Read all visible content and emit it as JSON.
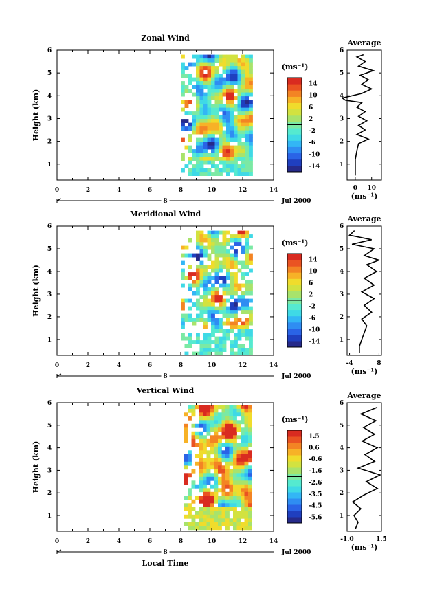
{
  "colormap": [
    "#262a8a",
    "#1f3fbf",
    "#2a63e6",
    "#2f8df2",
    "#33b6f5",
    "#3fd9e6",
    "#55ead0",
    "#7be9a4",
    "#a8e36b",
    "#d2e240",
    "#f0dc2c",
    "#f7b227",
    "#f38424",
    "#ea5322",
    "#d92b20"
  ],
  "shared": {
    "date_label": "Jul 2000",
    "date_day": "8",
    "xlabel": "Local Time"
  },
  "chart_data": [
    {
      "type": "heatmap",
      "title": "Zonal Wind",
      "ylabel": "Height (km)",
      "unit": "(ms⁻¹)",
      "xlim": [
        0,
        14
      ],
      "ylim": [
        0.3,
        6
      ],
      "xticks": [
        "0",
        "2",
        "4",
        "6",
        "8",
        "10",
        "12",
        "14"
      ],
      "yticks": [
        "1",
        "2",
        "3",
        "4",
        "5",
        "6"
      ],
      "colorbar": {
        "min": -16,
        "max": 16,
        "ticks": [
          "14",
          "10",
          "6",
          "2",
          "-2",
          "-6",
          "-10",
          "-14"
        ]
      },
      "data_extent": {
        "t_start": 8.0,
        "t_end": 12.6,
        "z_bottom": 0.55,
        "z_top": 5.8,
        "surface_layer_top": 1.3
      },
      "average_profile": {
        "title": "Average",
        "xlabel": "(ms⁻¹)",
        "xlim": [
          -5,
          16
        ],
        "xticks": [
          "0",
          "10"
        ],
        "heights": [
          0.5,
          0.8,
          1.2,
          1.6,
          1.9,
          2.1,
          2.3,
          2.5,
          2.7,
          2.9,
          3.1,
          3.3,
          3.5,
          3.7,
          3.8,
          3.9,
          4.1,
          4.3,
          4.5,
          4.7,
          4.9,
          5.1,
          5.3,
          5.5,
          5.7,
          5.8
        ],
        "values": [
          0,
          0,
          0,
          1,
          2,
          8,
          1,
          6,
          2,
          7,
          2,
          6,
          1,
          4,
          -6,
          -8,
          4,
          10,
          4,
          8,
          3,
          11,
          2,
          6,
          1,
          5
        ]
      }
    },
    {
      "type": "heatmap",
      "title": "Meridional Wind",
      "ylabel": "Height (km)",
      "unit": "(ms⁻¹)",
      "xlim": [
        0,
        14
      ],
      "ylim": [
        0.3,
        6
      ],
      "xticks": [
        "0",
        "2",
        "4",
        "6",
        "8",
        "10",
        "12",
        "14"
      ],
      "yticks": [
        "1",
        "2",
        "3",
        "4",
        "5",
        "6"
      ],
      "colorbar": {
        "min": -16,
        "max": 16,
        "ticks": [
          "14",
          "10",
          "6",
          "2",
          "-2",
          "-6",
          "-10",
          "-14"
        ]
      },
      "data_extent": {
        "t_start": 8.0,
        "t_end": 12.6,
        "z_bottom": 0.35,
        "z_top": 5.8,
        "surface_layer_top": 1.5
      },
      "average_profile": {
        "title": "Average",
        "xlabel": "(ms⁻¹)",
        "xlim": [
          -5,
          9
        ],
        "xticks": [
          "-4",
          "8"
        ],
        "heights": [
          0.4,
          0.7,
          1.0,
          1.3,
          1.6,
          1.9,
          2.2,
          2.5,
          2.8,
          3.1,
          3.4,
          3.7,
          4.0,
          4.3,
          4.5,
          4.7,
          5.0,
          5.2,
          5.4,
          5.6,
          5.8
        ],
        "values": [
          0,
          0,
          1,
          2,
          3,
          1,
          5,
          2,
          6,
          1,
          6,
          2,
          7,
          3,
          8,
          2,
          6,
          -3,
          5,
          -4,
          -2
        ]
      }
    },
    {
      "type": "heatmap",
      "title": "Vertical Wind",
      "ylabel": "Height (km)",
      "xlabel": "Local Time",
      "unit": "(ms⁻¹)",
      "xlim": [
        0,
        14
      ],
      "ylim": [
        0.3,
        6
      ],
      "xticks": [
        "0",
        "2",
        "4",
        "6",
        "8",
        "10",
        "12",
        "14"
      ],
      "yticks": [
        "1",
        "2",
        "3",
        "4",
        "5",
        "6"
      ],
      "colorbar": {
        "min": -6,
        "max": 2,
        "ticks": [
          "1.5",
          "0.6",
          "-0.6",
          "-1.6",
          "-2.6",
          "-3.5",
          "-4.5",
          "-5.6"
        ]
      },
      "data_extent": {
        "t_start": 8.2,
        "t_end": 12.6,
        "z_bottom": 0.4,
        "z_top": 5.9,
        "surface_layer_top": 1.5
      },
      "average_profile": {
        "title": "Average",
        "xlabel": "(ms⁻¹)",
        "xlim": [
          -1,
          1.5
        ],
        "xticks": [
          "-1.0",
          "1.5"
        ],
        "heights": [
          0.4,
          0.7,
          1.0,
          1.3,
          1.6,
          1.9,
          2.2,
          2.5,
          2.8,
          3.1,
          3.4,
          3.7,
          4.0,
          4.3,
          4.6,
          4.9,
          5.2,
          5.5,
          5.8
        ],
        "values": [
          -0.4,
          -0.2,
          -0.5,
          0.0,
          -0.6,
          0.2,
          1.2,
          0.4,
          1.4,
          -0.2,
          1.0,
          0.3,
          1.2,
          0.1,
          1.0,
          0.2,
          1.1,
          0.0,
          1.2
        ]
      }
    }
  ]
}
